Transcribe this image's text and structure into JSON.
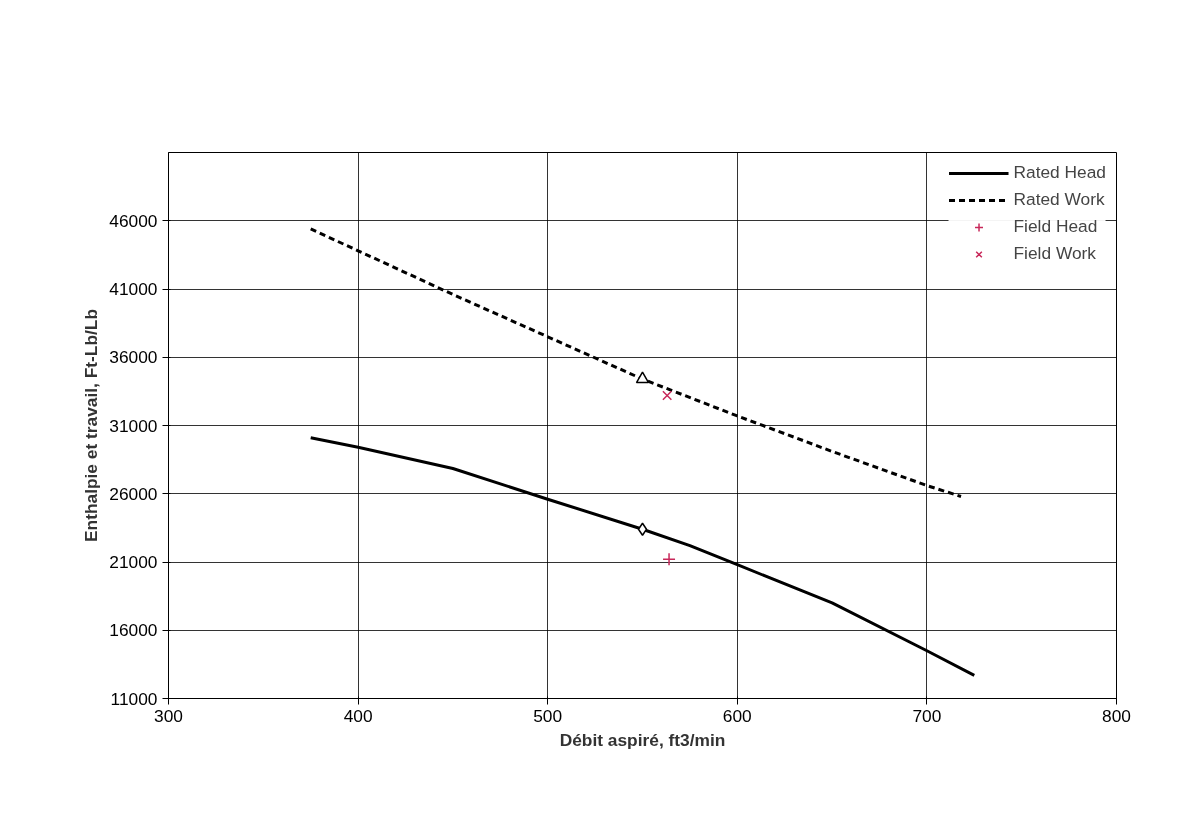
{
  "chart_data": {
    "type": "line",
    "xlabel": "Débit aspiré, ft3/min",
    "ylabel": "Enthalpie et travail, Ft-Lb/Lb",
    "xlim": [
      300,
      800
    ],
    "xticks": [
      300,
      400,
      500,
      600,
      700,
      800
    ],
    "ylim": [
      11000,
      51000
    ],
    "yticks": [
      11000,
      16000,
      21000,
      26000,
      31000,
      36000,
      41000,
      46000
    ],
    "grid": true,
    "legend": "top right",
    "series": [
      {
        "name": "Rated Head",
        "line_style": "solid",
        "color": "#000000",
        "x": [
          375,
          400,
          450,
          500,
          550,
          575,
          600,
          650,
          700,
          725
        ],
        "values": [
          30100,
          29400,
          27850,
          25600,
          23400,
          22200,
          20800,
          18000,
          14500,
          12700
        ]
      },
      {
        "name": "Rated Work",
        "line_style": "dashed",
        "color": "#000000",
        "x": [
          375,
          400,
          450,
          500,
          550,
          600,
          650,
          700,
          718
        ],
        "values": [
          45400,
          43800,
          40600,
          37500,
          34400,
          31700,
          29100,
          26600,
          25800
        ]
      },
      {
        "name": "Field Head",
        "type": "scatter",
        "marker": "cross",
        "color": "#c8285a",
        "x": [
          564
        ],
        "values": [
          21200
        ]
      },
      {
        "name": "Field Work",
        "type": "scatter",
        "marker": "x",
        "color": "#c8285a",
        "x": [
          563
        ],
        "values": [
          33200
        ]
      },
      {
        "type": "scatter",
        "marker": "diamond",
        "color": "#000000",
        "x": [
          550
        ],
        "values": [
          23400
        ]
      },
      {
        "type": "scatter",
        "marker": "triangle",
        "color": "#000000",
        "x": [
          550
        ],
        "values": [
          34400
        ]
      }
    ]
  }
}
